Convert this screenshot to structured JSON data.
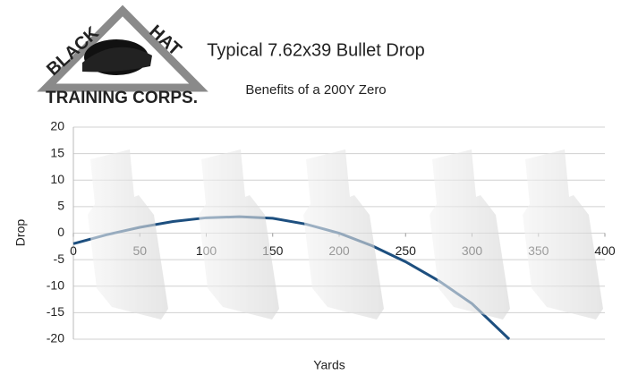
{
  "logo": {
    "line1": "BLACK",
    "line2": "HAT",
    "line3": "TRAINING CORPS."
  },
  "chart_data": {
    "type": "line",
    "title": "Typical 7.62x39 Bullet Drop",
    "subtitle": "Benefits of a 200Y Zero",
    "x_label": "Yards",
    "y_label": "Drop",
    "x": [
      0,
      25,
      50,
      75,
      100,
      125,
      150,
      175,
      200,
      225,
      250,
      275,
      300,
      328
    ],
    "values": [
      -2,
      -0.3,
      1.1,
      2.2,
      2.9,
      3.1,
      2.8,
      1.7,
      0,
      -2.4,
      -5.4,
      -9,
      -13.3,
      -20
    ],
    "color": "#1d4f7f",
    "xlim": [
      0,
      400
    ],
    "xticks": [
      0,
      50,
      100,
      150,
      200,
      250,
      300,
      350,
      400
    ],
    "ylim": [
      -20,
      20
    ],
    "yticks": [
      -20,
      -15,
      -10,
      -5,
      0,
      5,
      10,
      15,
      20
    ],
    "grid": true
  }
}
